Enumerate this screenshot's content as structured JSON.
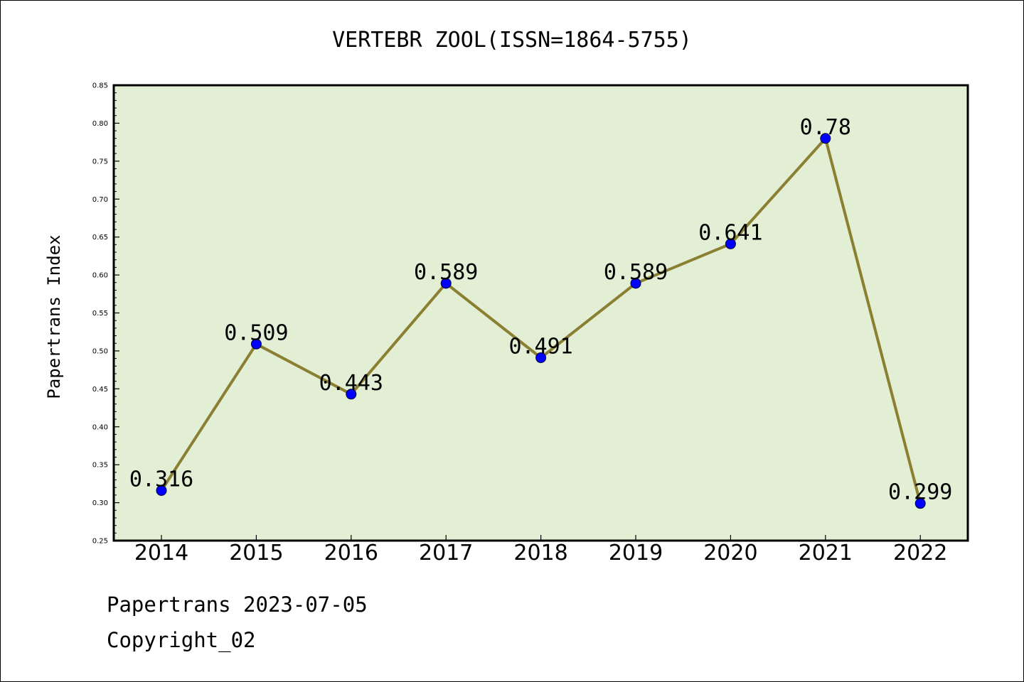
{
  "chart_data": {
    "type": "line",
    "title": "VERTEBR ZOOL(ISSN=1864-5755)",
    "ylabel": "Papertrans Index",
    "xlabel": "",
    "categories": [
      "2014",
      "2015",
      "2016",
      "2017",
      "2018",
      "2019",
      "2020",
      "2021",
      "2022"
    ],
    "series": [
      {
        "values": [
          0.316,
          0.509,
          0.443,
          0.589,
          0.491,
          0.589,
          0.641,
          0.78,
          0.299
        ],
        "labels": [
          "0.316",
          "0.509",
          "0.443",
          "0.589",
          "0.491",
          "0.589",
          "0.641",
          "0.78",
          "0.299"
        ]
      }
    ],
    "ylim": [
      0.25,
      0.85
    ],
    "yticks": [
      "0.25",
      "0.30",
      "0.35",
      "0.40",
      "0.45",
      "0.50",
      "0.55",
      "0.60",
      "0.65",
      "0.70",
      "0.75",
      "0.80",
      "0.85"
    ],
    "grid": false,
    "legend": "none",
    "colors": {
      "plot_background": "#e2efd5",
      "line": "#8b7f32",
      "marker": "#0000ff",
      "axes": "#000000"
    }
  },
  "footer": {
    "line1": "Papertrans 2023-07-05",
    "line2": "Copyright_02"
  }
}
